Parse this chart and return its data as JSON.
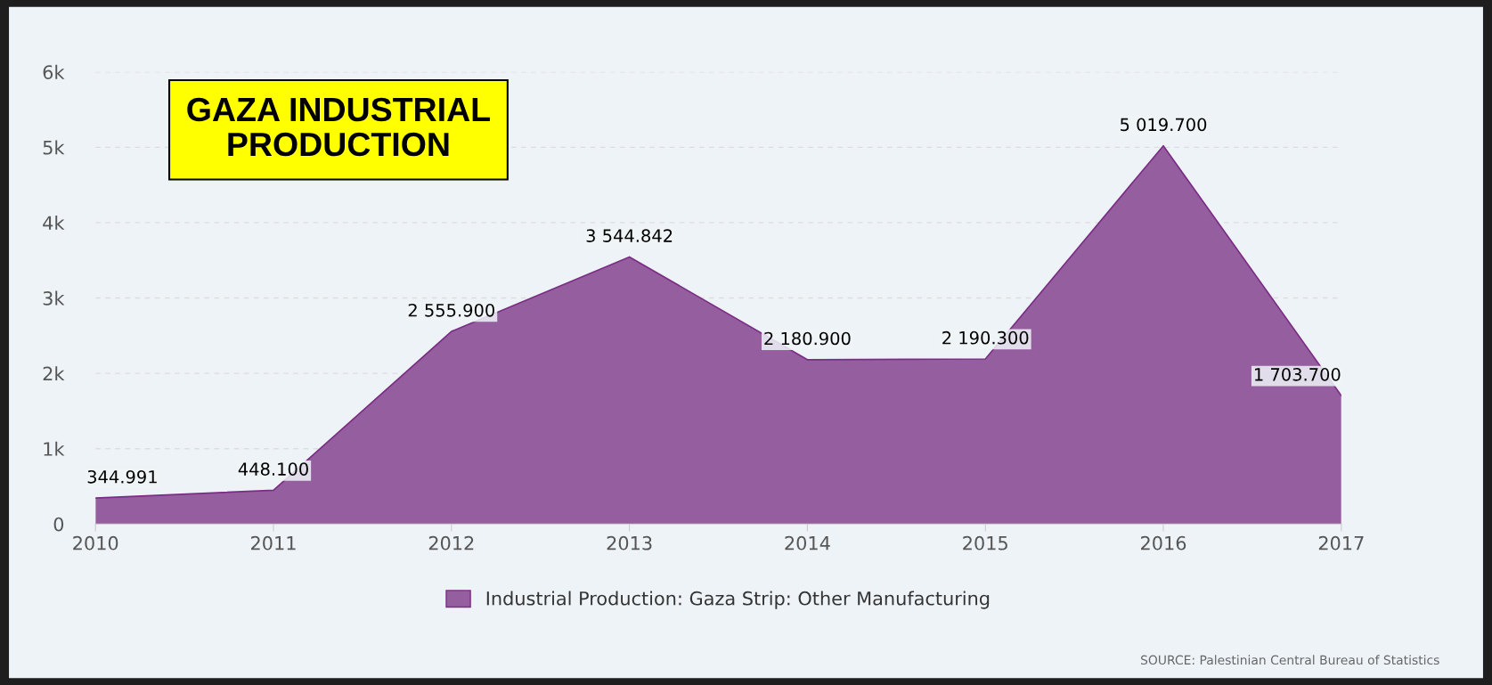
{
  "chart_data": {
    "type": "area",
    "title": "GAZA INDUSTRIAL\nPRODUCTION",
    "categories": [
      "2010",
      "2011",
      "2012",
      "2013",
      "2014",
      "2015",
      "2016",
      "2017"
    ],
    "series": [
      {
        "name": "Industrial Production: Gaza Strip: Other Manufacturing",
        "color": "#955e9e",
        "values": [
          344.991,
          448.1,
          2555.9,
          3544.842,
          2180.9,
          2190.3,
          5019.7,
          1703.7
        ],
        "value_labels": [
          "344.991",
          "448.100",
          "2 555.900",
          "3 544.842",
          "2 180.900",
          "2 190.300",
          "5 019.700",
          "1 703.700"
        ]
      }
    ],
    "ylim": [
      0,
      6000
    ],
    "yticks": [
      0,
      {
        "value": 1000,
        "label": "1k"
      },
      {
        "value": 2000,
        "label": "2k"
      },
      {
        "value": 3000,
        "label": "3k"
      },
      {
        "value": 4000,
        "label": "4k"
      },
      {
        "value": 5000,
        "label": "5k"
      },
      {
        "value": 6000,
        "label": "6k"
      }
    ],
    "grid": "y",
    "legend": "bottom",
    "annotations": [
      "SOURCE: Palestinian Central Bureau of Statistics"
    ]
  }
}
